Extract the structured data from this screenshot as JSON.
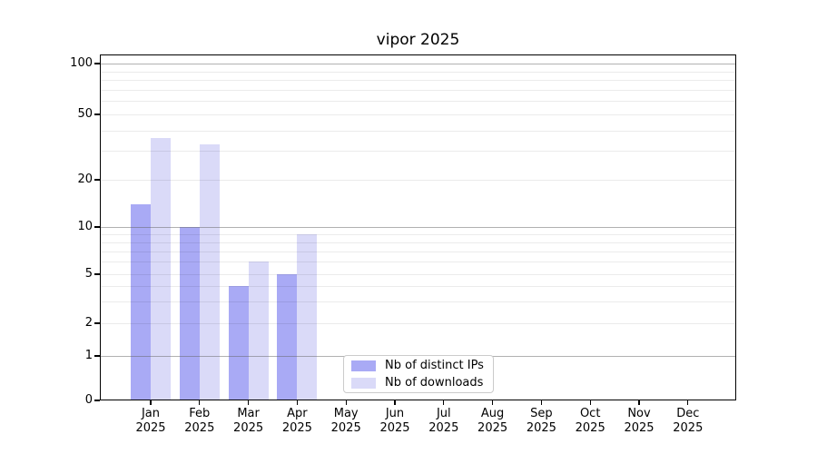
{
  "chart_data": {
    "type": "bar",
    "title": "vipor 2025",
    "categories": [
      {
        "month": "Jan",
        "year": "2025"
      },
      {
        "month": "Feb",
        "year": "2025"
      },
      {
        "month": "Mar",
        "year": "2025"
      },
      {
        "month": "Apr",
        "year": "2025"
      },
      {
        "month": "May",
        "year": "2025"
      },
      {
        "month": "Jun",
        "year": "2025"
      },
      {
        "month": "Jul",
        "year": "2025"
      },
      {
        "month": "Aug",
        "year": "2025"
      },
      {
        "month": "Sep",
        "year": "2025"
      },
      {
        "month": "Oct",
        "year": "2025"
      },
      {
        "month": "Nov",
        "year": "2025"
      },
      {
        "month": "Dec",
        "year": "2025"
      }
    ],
    "series": [
      {
        "name": "Nb of distinct IPs",
        "color": "#a9aaf5",
        "values": [
          14,
          10,
          4,
          5,
          0,
          0,
          0,
          0,
          0,
          0,
          0,
          0
        ]
      },
      {
        "name": "Nb of downloads",
        "color": "#dadaf8",
        "values": [
          36,
          33,
          6,
          9,
          0,
          0,
          0,
          0,
          0,
          0,
          0,
          0
        ]
      }
    ],
    "ylim": [
      0,
      100
    ],
    "yscale": "log1p-like",
    "yticks": [
      0,
      1,
      2,
      5,
      10,
      20,
      50,
      100
    ],
    "major_gridline_values": [
      1,
      10,
      100
    ],
    "minor_gridline_values": [
      2,
      3,
      4,
      5,
      6,
      7,
      8,
      9,
      20,
      30,
      40,
      50,
      60,
      70,
      80,
      90
    ],
    "grid": true,
    "legend_position": "inside bottom-center",
    "colors": {
      "major_grid": "#b0b0b0",
      "minor_grid": "#ebebeb",
      "spine": "#000000",
      "text": "#000000",
      "background": "#ffffff",
      "legend_border": "#cbcbcb"
    }
  }
}
